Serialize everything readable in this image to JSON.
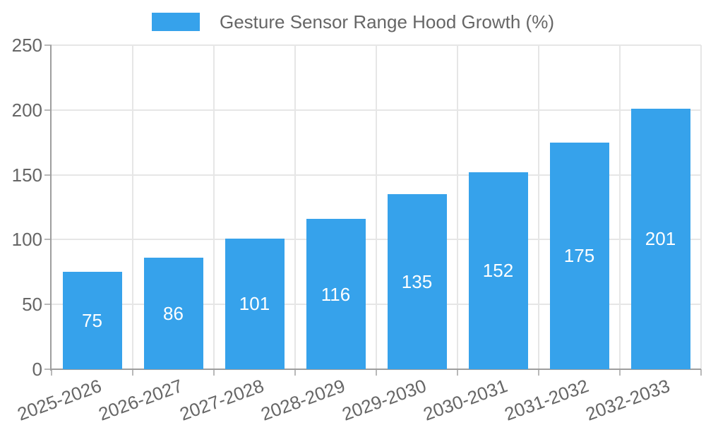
{
  "chart_data": {
    "type": "bar",
    "title": "Gesture Sensor Range Hood Growth (%)",
    "series_name": "Gesture Sensor Range Hood Growth (%)",
    "categories": [
      "2025-2026",
      "2026-2027",
      "2027-2028",
      "2028-2029",
      "2029-2030",
      "2030-2031",
      "2031-2032",
      "2032-2033"
    ],
    "values": [
      75,
      86,
      101,
      116,
      135,
      152,
      175,
      201
    ],
    "xlabel": "",
    "ylabel": "",
    "ylim": [
      0,
      250
    ],
    "yticks": [
      0,
      50,
      100,
      150,
      200,
      250
    ],
    "grid": true,
    "legend_position": "top-center",
    "xtick_rotation_deg": -20,
    "colors": {
      "bar": "#36A2EB",
      "value_label": "#ffffff",
      "axis_text": "#666666",
      "gridline": "#e6e6e6",
      "axis_line": "#9e9e9e",
      "tick_mark": "#b9b9b9",
      "background": "#ffffff"
    }
  }
}
